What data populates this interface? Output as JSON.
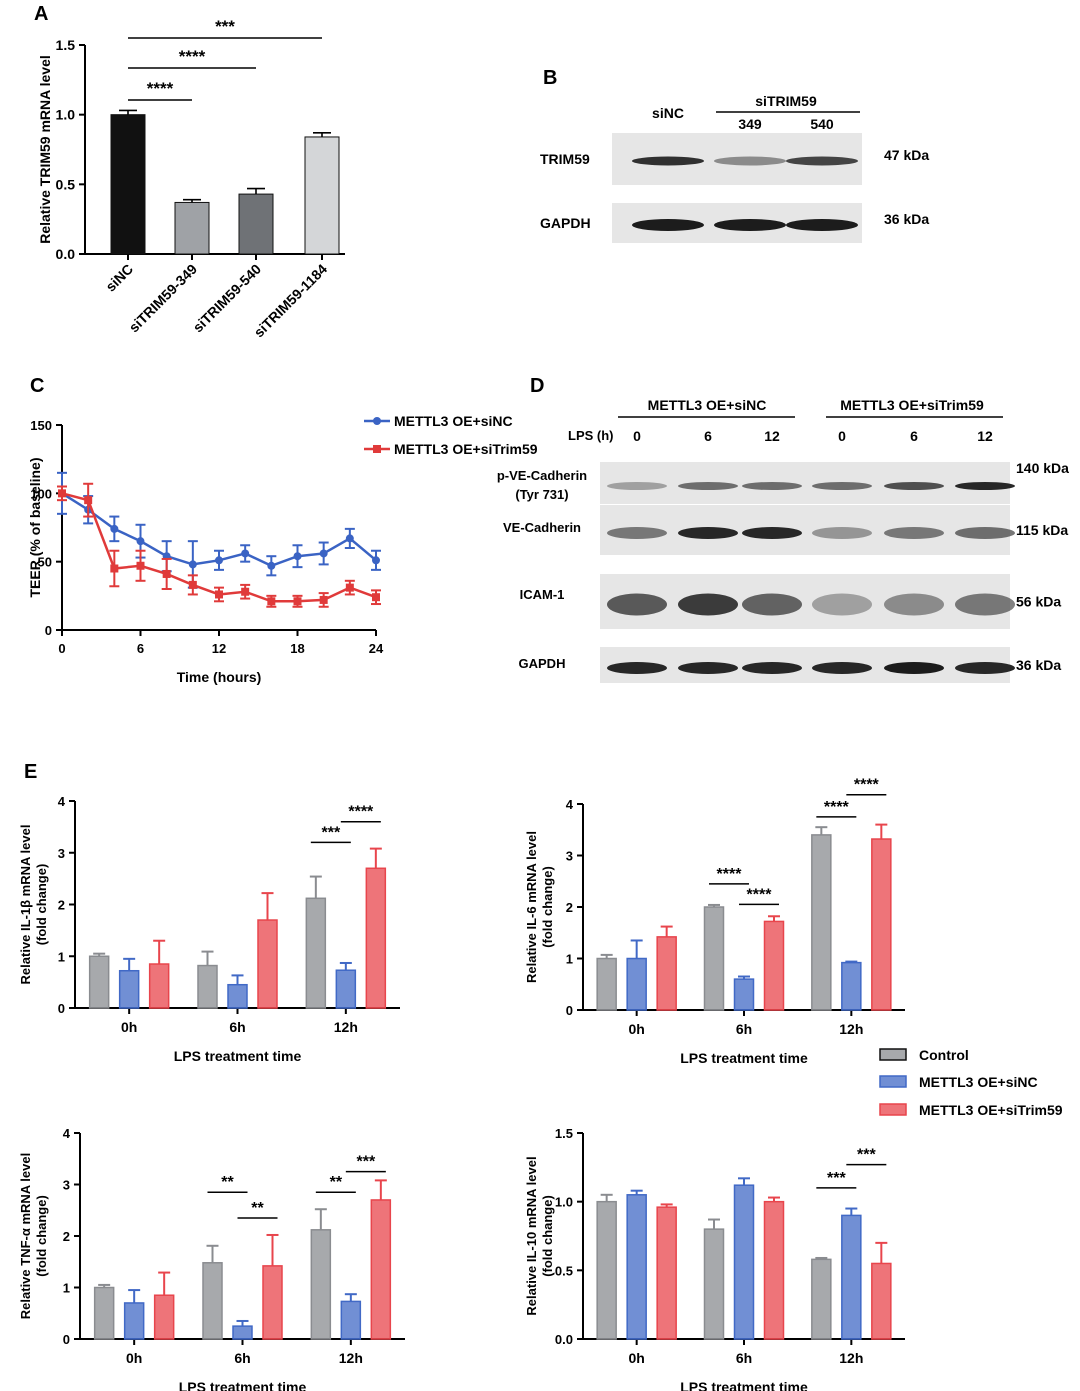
{
  "colors": {
    "control": "#8a8c90",
    "sinc": "#4169c6",
    "sitrim": "#e8454c",
    "black": "#111111",
    "blot_bg": "#e6e6e6",
    "blot_band": "#1c1c1c"
  },
  "panelA": {
    "letter": "A",
    "chart_data": {
      "type": "bar",
      "ylabel": "Relative TRIM59 mRNA level",
      "ylim": [
        0,
        1.5
      ],
      "yticks": [
        0.0,
        0.5,
        1.0,
        1.5
      ],
      "ytick_labels": [
        "0.0",
        "0.5",
        "1.0",
        "1.5"
      ],
      "categories": [
        "siNC",
        "siTRIM59-349",
        "siTRIM59-540",
        "siTRIM59-1184"
      ],
      "values": [
        1.0,
        0.37,
        0.43,
        0.84
      ],
      "errors": [
        0.03,
        0.02,
        0.04,
        0.03
      ],
      "bar_colors": [
        "#111111",
        "#9fa2a6",
        "#6f7276",
        "#d4d6d8"
      ],
      "significance": [
        {
          "from": 0,
          "to": 1,
          "label": "****"
        },
        {
          "from": 0,
          "to": 2,
          "label": "****"
        },
        {
          "from": 0,
          "to": 3,
          "label": "***"
        }
      ]
    }
  },
  "panelB": {
    "letter": "B",
    "header_group": "siTRIM59",
    "lanes": [
      "siNC",
      "349",
      "540"
    ],
    "bands": [
      {
        "label": "TRIM59",
        "size": "47 kDa"
      },
      {
        "label": "GAPDH",
        "size": "36 kDa"
      }
    ]
  },
  "panelC": {
    "letter": "C",
    "chart_data": {
      "type": "line",
      "xlabel": "Time (hours)",
      "ylabel": "TEER (% of baseline)",
      "xlim": [
        0,
        24
      ],
      "ylim": [
        0,
        150
      ],
      "xticks": [
        0,
        6,
        12,
        18,
        24
      ],
      "yticks": [
        0,
        50,
        100,
        150
      ],
      "x": [
        0,
        2,
        4,
        6,
        8,
        10,
        12,
        14,
        16,
        18,
        20,
        22,
        24
      ],
      "series": [
        {
          "name": "METTL3 OE+siNC",
          "color": "#3a63c4",
          "values": [
            100,
            88,
            74,
            65,
            54,
            48,
            51,
            56,
            47,
            54,
            56,
            67,
            51
          ],
          "errors": [
            15,
            10,
            9,
            12,
            11,
            17,
            7,
            6,
            7,
            8,
            8,
            7,
            7
          ]
        },
        {
          "name": "METTL3 OE+siTrim59",
          "color": "#e03a3a",
          "values": [
            100,
            95,
            45,
            47,
            41,
            33,
            26,
            28,
            21,
            21,
            22,
            31,
            24
          ],
          "errors": [
            5,
            12,
            13,
            11,
            11,
            7,
            5,
            5,
            4,
            4,
            5,
            5,
            5
          ]
        }
      ]
    }
  },
  "panelD": {
    "letter": "D",
    "lps_label": "LPS (h)",
    "groups": [
      "METTL3 OE+siNC",
      "METTL3 OE+siTrim59"
    ],
    "timepoints": [
      "0",
      "6",
      "12",
      "0",
      "6",
      "12"
    ],
    "bands": [
      {
        "label": "p-VE-Cadherin",
        "sublabel": "(Tyr 731)",
        "size": "140 kDa"
      },
      {
        "label": "VE-Cadherin",
        "sublabel": "",
        "size": "115 kDa"
      },
      {
        "label": "ICAM-1",
        "sublabel": "",
        "size": "56 kDa"
      },
      {
        "label": "GAPDH",
        "sublabel": "",
        "size": "36 kDa"
      }
    ]
  },
  "panelE": {
    "letter": "E",
    "legend": [
      "Control",
      "METTL3 OE+siNC",
      "METTL3 OE+siTrim59"
    ],
    "chart_data": [
      {
        "type": "bar",
        "ylabel": "Relative IL-1β mRNA level\n(fold change)",
        "xlabel": "LPS treatment time",
        "categories": [
          "0h",
          "6h",
          "12h"
        ],
        "ylim": [
          0,
          4
        ],
        "yticks": [
          0,
          1,
          2,
          3,
          4
        ],
        "ytick_labels": [
          "0",
          "1",
          "2",
          "3",
          "4"
        ],
        "series": [
          {
            "name": "Control",
            "values": [
              1.0,
              0.82,
              2.12
            ],
            "errors": [
              0.05,
              0.27,
              0.42
            ]
          },
          {
            "name": "METTL3 OE+siNC",
            "values": [
              0.72,
              0.45,
              0.73
            ],
            "errors": [
              0.23,
              0.18,
              0.14
            ]
          },
          {
            "name": "METTL3 OE+siTrim59",
            "values": [
              0.85,
              1.7,
              2.7
            ],
            "errors": [
              0.45,
              0.52,
              0.38
            ]
          }
        ],
        "significance": [
          {
            "cat": 2,
            "from": 0,
            "to": 1,
            "y": 3.2,
            "label": "***"
          },
          {
            "cat": 2,
            "from": 1,
            "to": 2,
            "y": 3.6,
            "label": "****"
          }
        ]
      },
      {
        "type": "bar",
        "ylabel": "Relative IL-6 mRNA level\n(fold change)",
        "xlabel": "LPS treatment time",
        "categories": [
          "0h",
          "6h",
          "12h"
        ],
        "ylim": [
          0,
          4
        ],
        "yticks": [
          0,
          1,
          2,
          3,
          4
        ],
        "ytick_labels": [
          "0",
          "1",
          "2",
          "3",
          "4"
        ],
        "series": [
          {
            "name": "Control",
            "values": [
              1.0,
              2.0,
              3.4
            ],
            "errors": [
              0.07,
              0.04,
              0.15
            ]
          },
          {
            "name": "METTL3 OE+siNC",
            "values": [
              1.0,
              0.6,
              0.92
            ],
            "errors": [
              0.35,
              0.05,
              0.02
            ]
          },
          {
            "name": "METTL3 OE+siTrim59",
            "values": [
              1.42,
              1.72,
              3.32
            ],
            "errors": [
              0.2,
              0.1,
              0.28
            ]
          }
        ],
        "significance": [
          {
            "cat": 1,
            "from": 0,
            "to": 1,
            "y": 2.45,
            "label": "****"
          },
          {
            "cat": 1,
            "from": 1,
            "to": 2,
            "y": 2.05,
            "label": "****"
          },
          {
            "cat": 2,
            "from": 0,
            "to": 1,
            "y": 3.75,
            "label": "****"
          },
          {
            "cat": 2,
            "from": 1,
            "to": 2,
            "y": 4.18,
            "label": "****"
          }
        ]
      },
      {
        "type": "bar",
        "ylabel": "Relative TNF-α mRNA level\n(fold change)",
        "xlabel": "LPS treatment time",
        "categories": [
          "0h",
          "6h",
          "12h"
        ],
        "ylim": [
          0,
          4
        ],
        "yticks": [
          0,
          1,
          2,
          3,
          4
        ],
        "ytick_labels": [
          "0",
          "1",
          "2",
          "3",
          "4"
        ],
        "series": [
          {
            "name": "Control",
            "values": [
              1.0,
              1.48,
              2.12
            ],
            "errors": [
              0.05,
              0.33,
              0.4
            ]
          },
          {
            "name": "METTL3 OE+siNC",
            "values": [
              0.7,
              0.25,
              0.73
            ],
            "errors": [
              0.25,
              0.1,
              0.14
            ]
          },
          {
            "name": "METTL3 OE+siTrim59",
            "values": [
              0.85,
              1.42,
              2.7
            ],
            "errors": [
              0.44,
              0.6,
              0.38
            ]
          }
        ],
        "significance": [
          {
            "cat": 1,
            "from": 0,
            "to": 1,
            "y": 2.85,
            "label": "**"
          },
          {
            "cat": 1,
            "from": 1,
            "to": 2,
            "y": 2.35,
            "label": "**"
          },
          {
            "cat": 2,
            "from": 0,
            "to": 1,
            "y": 2.85,
            "label": "**"
          },
          {
            "cat": 2,
            "from": 1,
            "to": 2,
            "y": 3.25,
            "label": "***"
          }
        ]
      },
      {
        "type": "bar",
        "ylabel": "Relative IL-10 mRNA level\n(fold change)",
        "xlabel": "LPS treatment time",
        "categories": [
          "0h",
          "6h",
          "12h"
        ],
        "ylim": [
          0,
          1.5
        ],
        "yticks": [
          0.0,
          0.5,
          1.0,
          1.5
        ],
        "ytick_labels": [
          "0.0",
          "0.5",
          "1.0",
          "1.5"
        ],
        "series": [
          {
            "name": "Control",
            "values": [
              1.0,
              0.8,
              0.58
            ],
            "errors": [
              0.05,
              0.07,
              0.01
            ]
          },
          {
            "name": "METTL3 OE+siNC",
            "values": [
              1.05,
              1.12,
              0.9
            ],
            "errors": [
              0.03,
              0.05,
              0.05
            ]
          },
          {
            "name": "METTL3 OE+siTrim59",
            "values": [
              0.96,
              1.0,
              0.55
            ],
            "errors": [
              0.02,
              0.03,
              0.15
            ]
          }
        ],
        "significance": [
          {
            "cat": 2,
            "from": 0,
            "to": 1,
            "y": 1.1,
            "label": "***"
          },
          {
            "cat": 2,
            "from": 1,
            "to": 2,
            "y": 1.27,
            "label": "***"
          }
        ]
      }
    ]
  }
}
